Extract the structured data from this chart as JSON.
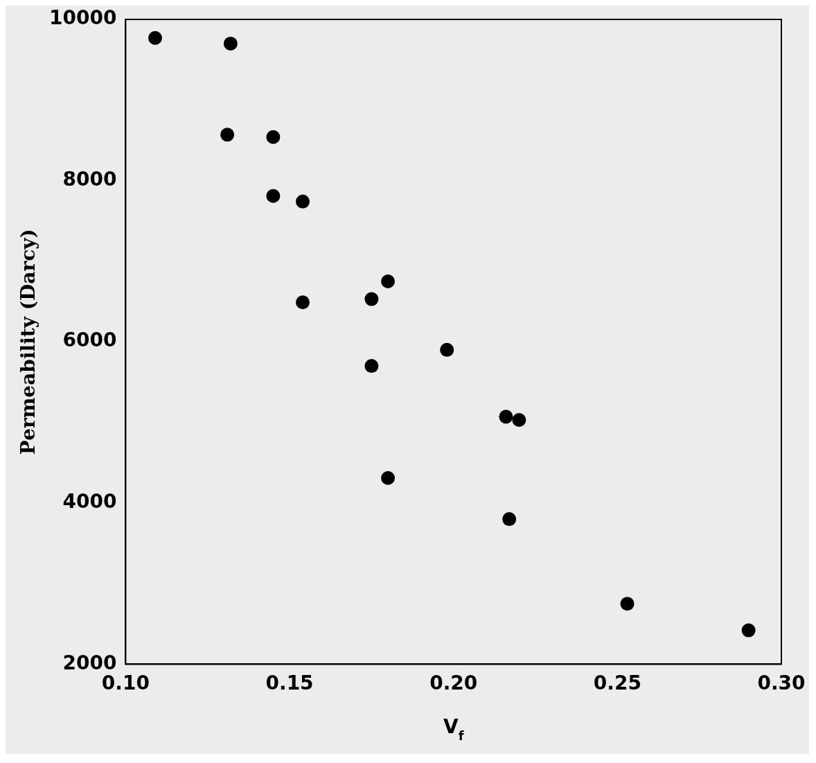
{
  "chart_data": {
    "type": "scatter",
    "xlabel": "V$_{f}$",
    "ylabel": "Permeability (Darcy)",
    "marker": "circle",
    "grid": false,
    "legend": false,
    "x": [
      0.109,
      0.132,
      0.131,
      0.145,
      0.145,
      0.154,
      0.154,
      0.175,
      0.18,
      0.175,
      0.198,
      0.216,
      0.22,
      0.18,
      0.217,
      0.253,
      0.29
    ],
    "series": [
      {
        "color": "#000000",
        "values": [
          9770,
          9700,
          8570,
          8540,
          7810,
          7740,
          6490,
          6530,
          6750,
          5700,
          5900,
          5070,
          5030,
          4310,
          3800,
          2750,
          2420
        ]
      }
    ],
    "xlim": [
      0.1,
      0.3
    ],
    "xticks": [
      {
        "value": 0.1,
        "label": "0.10"
      },
      {
        "value": 0.15,
        "label": "0.15"
      },
      {
        "value": 0.2,
        "label": "0.20"
      },
      {
        "value": 0.25,
        "label": "0.25"
      },
      {
        "value": 0.3,
        "label": "0.30"
      }
    ],
    "ylim": [
      2000,
      10000
    ],
    "yticks": [
      2000,
      4000,
      6000,
      8000,
      10000
    ]
  }
}
